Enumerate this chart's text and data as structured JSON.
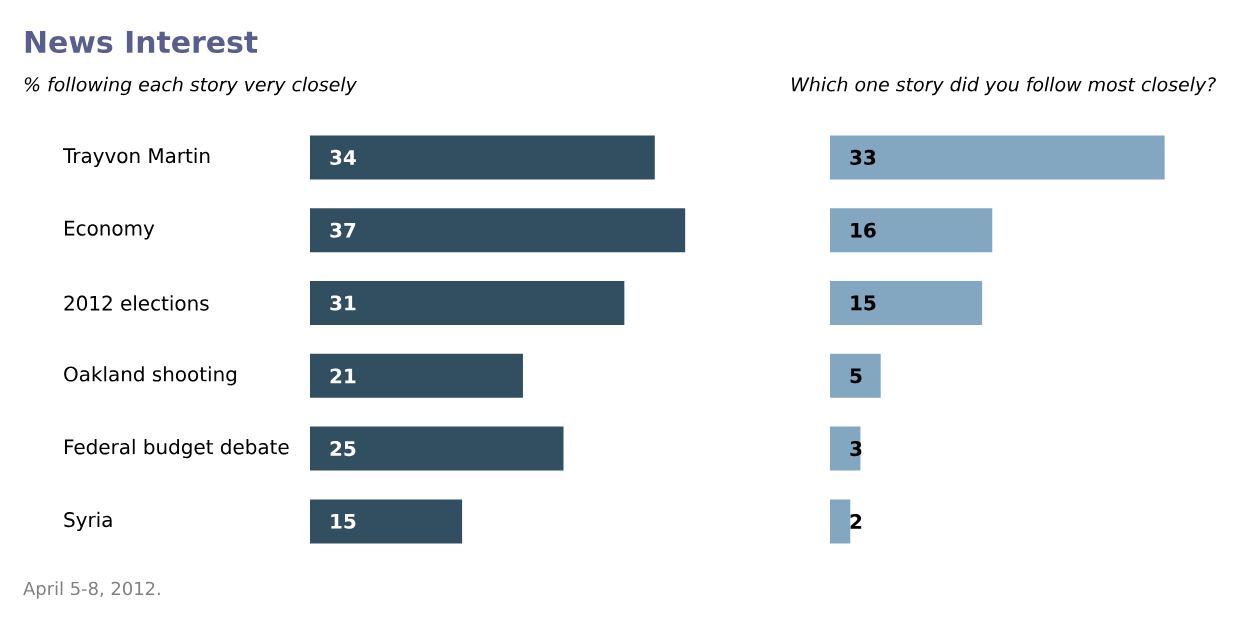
{
  "chart_data": [
    {
      "type": "bar",
      "orientation": "horizontal",
      "title": "News Interest",
      "subtitle": "% following each story very closely",
      "categories": [
        "Trayvon Martin",
        "Economy",
        "2012 elections",
        "Oakland shooting",
        "Federal budget debate",
        "Syria"
      ],
      "values": [
        34,
        37,
        31,
        21,
        25,
        15
      ],
      "color": "#324f61",
      "data_labels": true,
      "tick_labels": "y",
      "annotations": [
        "April 5-8, 2012."
      ]
    },
    {
      "type": "bar",
      "orientation": "horizontal",
      "subtitle": "Which one story did you follow most closely?",
      "categories": [
        null,
        null,
        null,
        null,
        null,
        null
      ],
      "values": [
        33,
        16,
        15,
        5,
        3,
        2
      ],
      "color": "#84a7c1",
      "data_labels": true,
      "tick_labels": false
    }
  ]
}
